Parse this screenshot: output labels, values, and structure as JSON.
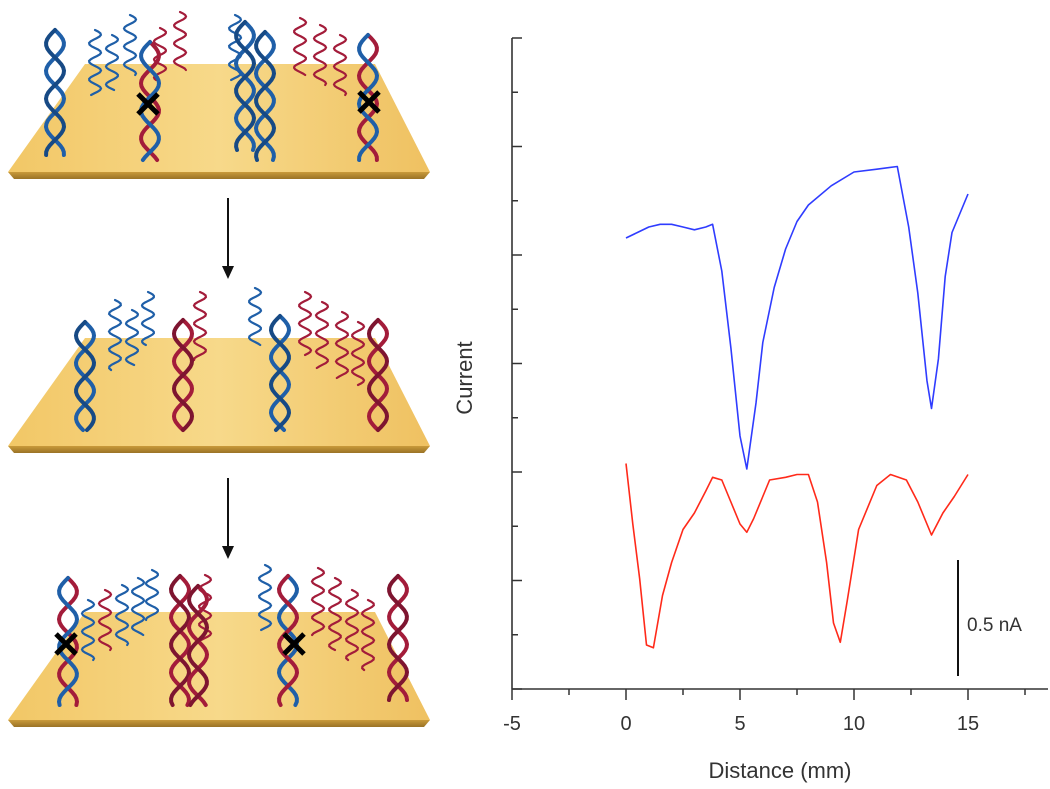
{
  "chart_data": {
    "type": "line",
    "title": "",
    "xlabel": "Distance (mm)",
    "ylabel": "Current",
    "xlim": [
      -5,
      19
    ],
    "xticks": [
      -5,
      0,
      5,
      10,
      15
    ],
    "x_minor_step": 2.5,
    "y_ticks_count": 13,
    "grid": false,
    "scale_bar": {
      "label": "0.5 nA",
      "value_nA": 0.5
    },
    "series": [
      {
        "color": "#2f3cff",
        "x": [
          0,
          0.5,
          1,
          1.5,
          2,
          2.5,
          3,
          3.5,
          3.8,
          4.2,
          4.6,
          5,
          5.3,
          5.7,
          6,
          6.5,
          7,
          7.5,
          8,
          9,
          10,
          11,
          11.9,
          12.4,
          12.8,
          13.2,
          13.4,
          13.7,
          14,
          14.3,
          15
        ],
        "y": [
          6.8,
          6.9,
          7.0,
          7.05,
          7.05,
          7.0,
          6.95,
          7.0,
          7.05,
          6.2,
          4.8,
          3.2,
          2.6,
          3.8,
          4.9,
          5.9,
          6.6,
          7.1,
          7.4,
          7.75,
          8.0,
          8.05,
          8.1,
          7.0,
          5.8,
          4.2,
          3.7,
          4.6,
          6.1,
          6.9,
          7.6
        ]
      },
      {
        "color": "#ff2a1a",
        "x": [
          0,
          0.3,
          0.6,
          0.9,
          1.2,
          1.6,
          2,
          2.5,
          3,
          3.5,
          3.8,
          4.2,
          4.6,
          5,
          5.3,
          5.6,
          6,
          6.3,
          7,
          7.5,
          8,
          8.4,
          8.8,
          9.1,
          9.4,
          9.7,
          10.2,
          11,
          11.6,
          12.3,
          12.8,
          13.4,
          13.9,
          14.4,
          15
        ],
        "y": [
          2.7,
          1.6,
          0.6,
          -0.6,
          -0.65,
          0.3,
          0.9,
          1.5,
          1.8,
          2.2,
          2.45,
          2.4,
          2.0,
          1.6,
          1.45,
          1.7,
          2.1,
          2.4,
          2.45,
          2.5,
          2.5,
          2.0,
          0.9,
          -0.2,
          -0.55,
          0.2,
          1.5,
          2.3,
          2.5,
          2.4,
          2.0,
          1.4,
          1.8,
          2.1,
          2.5
        ]
      }
    ]
  }
}
